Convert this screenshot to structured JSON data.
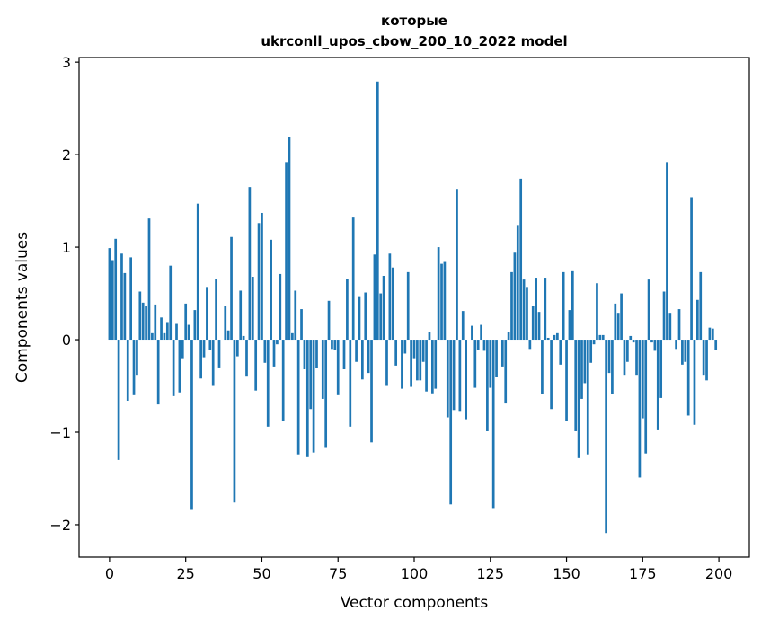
{
  "chart_data": {
    "type": "bar",
    "title_line1": "которые",
    "title_line2": "ukrconll_upos_cbow_200_10_2022 model",
    "xlabel": "Vector components",
    "ylabel": "Components values",
    "xlim": [
      -10,
      210
    ],
    "ylim": [
      -2.35,
      3.05
    ],
    "x_ticks": [
      0,
      25,
      50,
      75,
      100,
      125,
      150,
      175,
      200
    ],
    "x_tick_labels": [
      "0",
      "25",
      "50",
      "75",
      "100",
      "125",
      "150",
      "175",
      "200"
    ],
    "y_ticks": [
      -2,
      -1,
      0,
      1,
      2,
      3
    ],
    "y_tick_labels": [
      "−2",
      "−1",
      "0",
      "1",
      "2",
      "3"
    ],
    "bar_color": "#1f77b4",
    "grid": false,
    "values": [
      0.99,
      0.86,
      1.09,
      -1.3,
      0.93,
      0.72,
      -0.66,
      0.89,
      -0.6,
      -0.38,
      0.52,
      0.4,
      0.36,
      1.31,
      0.07,
      0.38,
      -0.7,
      0.24,
      0.07,
      0.19,
      0.8,
      -0.61,
      0.17,
      -0.57,
      -0.2,
      0.39,
      0.16,
      -1.84,
      0.32,
      1.47,
      -0.42,
      -0.19,
      0.57,
      -0.11,
      -0.5,
      0.66,
      -0.3,
      0.0,
      0.36,
      0.1,
      1.11,
      -1.76,
      -0.18,
      0.53,
      0.04,
      -0.39,
      1.65,
      0.68,
      -0.55,
      1.26,
      1.37,
      -0.25,
      -0.94,
      1.08,
      -0.29,
      -0.05,
      0.71,
      -0.88,
      1.92,
      2.19,
      0.07,
      0.53,
      -1.24,
      0.33,
      -0.32,
      -1.27,
      -0.75,
      -1.22,
      -0.31,
      0.0,
      -0.64,
      -1.17,
      0.42,
      -0.1,
      -0.11,
      -0.6,
      0.0,
      -0.32,
      0.66,
      -0.94,
      1.32,
      -0.24,
      0.47,
      -0.43,
      0.51,
      -0.36,
      -1.11,
      0.92,
      2.79,
      0.5,
      0.69,
      -0.5,
      0.93,
      0.78,
      -0.28,
      0.0,
      -0.53,
      -0.15,
      0.73,
      -0.51,
      -0.2,
      -0.44,
      -0.44,
      -0.24,
      -0.56,
      0.08,
      -0.58,
      -0.53,
      1.0,
      0.82,
      0.84,
      -0.84,
      -1.78,
      -0.76,
      1.63,
      -0.77,
      0.31,
      -0.86,
      0.0,
      0.15,
      -0.52,
      -0.11,
      0.16,
      -0.12,
      -0.99,
      -0.52,
      -1.82,
      -0.4,
      0.0,
      -0.29,
      -0.69,
      0.08,
      0.73,
      0.94,
      1.24,
      1.74,
      0.65,
      0.57,
      -0.1,
      0.36,
      0.67,
      0.3,
      -0.59,
      0.67,
      0.02,
      -0.75,
      0.05,
      0.07,
      -0.27,
      0.73,
      -0.88,
      0.32,
      0.74,
      -0.99,
      -1.28,
      -0.64,
      -0.47,
      -1.24,
      -0.25,
      -0.05,
      0.61,
      0.05,
      0.05,
      -2.09,
      -0.36,
      -0.59,
      0.39,
      0.29,
      0.5,
      -0.38,
      -0.24,
      0.04,
      -0.03,
      -0.38,
      -1.49,
      -0.85,
      -1.23,
      0.65,
      -0.03,
      -0.12,
      -0.97,
      -0.63,
      0.52,
      1.92,
      0.29,
      0.0,
      -0.1,
      0.33,
      -0.27,
      -0.24,
      -0.82,
      1.54,
      -0.92,
      0.43,
      0.73,
      -0.38,
      -0.44,
      0.13,
      0.12,
      -0.11
    ]
  }
}
